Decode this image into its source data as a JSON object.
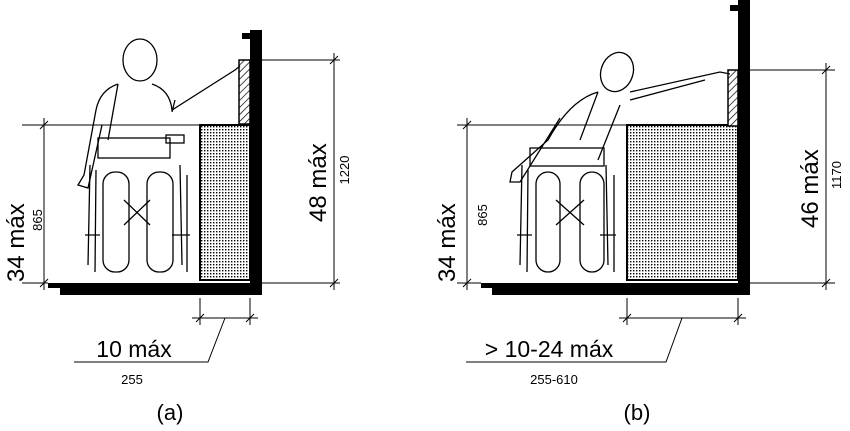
{
  "figure_a": {
    "caption": "(a)",
    "height_label": "34 máx",
    "height_metric": "865",
    "reach_label": "48 máx",
    "reach_metric": "1220",
    "depth_label": "10 máx",
    "depth_metric": "255"
  },
  "figure_b": {
    "caption": "(b)",
    "height_label": "34 máx",
    "height_metric": "865",
    "reach_label": "46 máx",
    "reach_metric": "1170",
    "depth_label": "> 10-24 máx",
    "depth_metric": "255-610"
  },
  "colors": {
    "ink": "#000000",
    "background": "#ffffff"
  }
}
